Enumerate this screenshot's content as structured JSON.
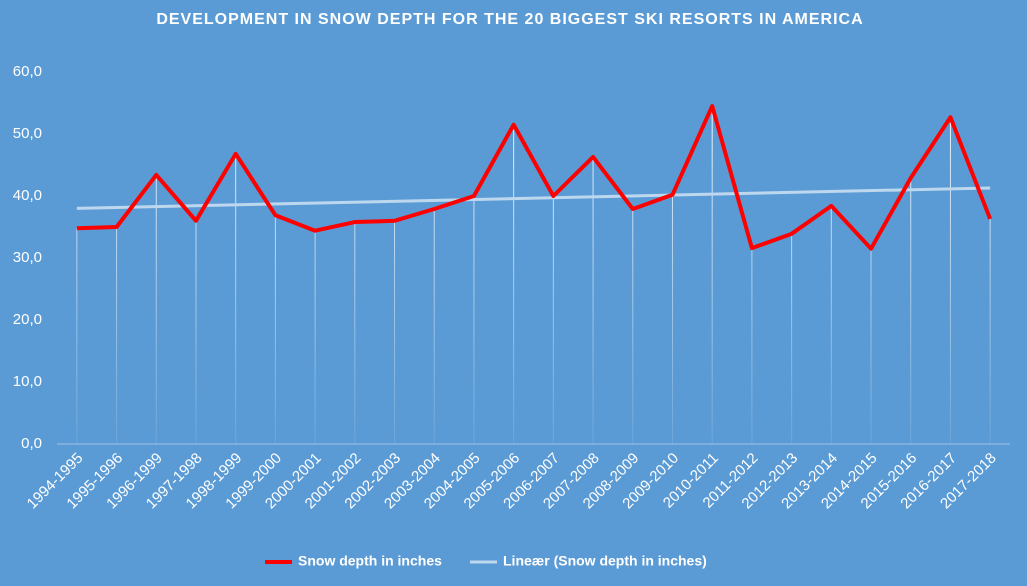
{
  "chart_data": {
    "type": "line",
    "title": "DEVELOPMENT IN SNOW DEPTH FOR THE 20 BIGGEST SKI RESORTS IN AMERICA",
    "categories": [
      "1994-1995",
      "1995-1996",
      "1996-1999",
      "1997-1998",
      "1998-1999",
      "1999-2000",
      "2000-2001",
      "2001-2002",
      "2002-2003",
      "2003-2004",
      "2004-2005",
      "2005-2006",
      "2006-2007",
      "2007-2008",
      "2008-2009",
      "2009-2010",
      "2010-2011",
      "2011-2012",
      "2012-2013",
      "2013-2014",
      "2014-2015",
      "2015-2016",
      "2016-2017",
      "2017-2018"
    ],
    "series": [
      {
        "name": "Snow depth in inches",
        "color": "#ff0000",
        "values": [
          34.8,
          35.0,
          43.4,
          36.0,
          46.8,
          36.9,
          34.4,
          35.8,
          36.0,
          37.9,
          40.0,
          51.5,
          40.0,
          46.3,
          37.9,
          40.2,
          54.5,
          31.6,
          33.9,
          38.4,
          31.5,
          42.9,
          52.7,
          36.3
        ]
      }
    ],
    "trendline": {
      "name": "Lineær (Snow depth in inches)",
      "color": "#bdd7ee",
      "start": 38.0,
      "end": 41.3
    },
    "ylim": [
      0,
      60
    ],
    "yticks": [
      {
        "value": 0,
        "label": "0,0"
      },
      {
        "value": 10,
        "label": "10,0"
      },
      {
        "value": 20,
        "label": "20,0"
      },
      {
        "value": 30,
        "label": "30,0"
      },
      {
        "value": 40,
        "label": "40,0"
      },
      {
        "value": 50,
        "label": "50,0"
      },
      {
        "value": 60,
        "label": "60,0"
      }
    ],
    "grid": false,
    "drop_lines": true,
    "legend": "bottom"
  }
}
